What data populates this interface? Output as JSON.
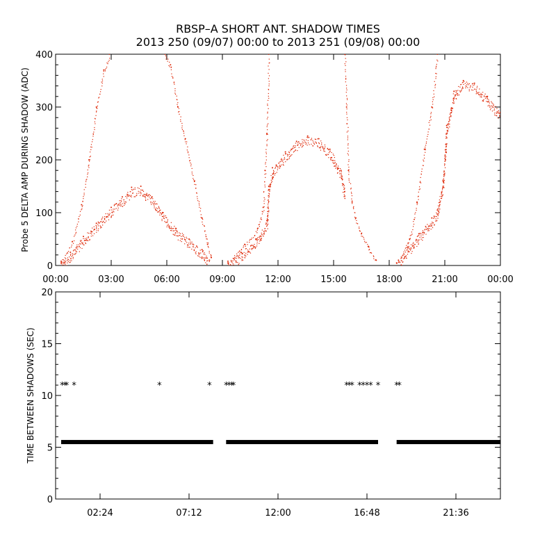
{
  "title_line1": "RBSP–A SHORT ANT. SHADOW TIMES",
  "title_line2": "2013 250 (09/07) 00:00 to 2013 251 (09/08) 00:00",
  "colors": {
    "points": "#dd2200",
    "axis": "#000000",
    "stars": "#000000"
  },
  "chart_data": [
    {
      "type": "scatter",
      "ylabel": "Probe 5 DELTA AMP DURING SHADOW (ADC)",
      "xlim": [
        0,
        24
      ],
      "ylim": [
        0,
        400
      ],
      "xticks": [
        "00:00",
        "03:00",
        "06:00",
        "09:00",
        "12:00",
        "15:00",
        "18:00",
        "21:00",
        "00:00"
      ],
      "yticks": [
        "0",
        "100",
        "200",
        "300",
        "400"
      ],
      "x_unit": "hours",
      "grid": false,
      "series": [
        {
          "values": [
            [
              0.3,
              5
            ],
            [
              0.8,
              25
            ],
            [
              1.5,
              55
            ],
            [
              2.2,
              80
            ],
            [
              3.0,
              110
            ],
            [
              3.6,
              130
            ],
            [
              4.1,
              148
            ],
            [
              4.6,
              150
            ],
            [
              5.2,
              130
            ],
            [
              5.8,
              100
            ],
            [
              6.5,
              70
            ],
            [
              7.2,
              50
            ],
            [
              7.9,
              30
            ],
            [
              8.3,
              10
            ]
          ]
        },
        {
          "values": [
            [
              0.3,
              8
            ],
            [
              0.9,
              45
            ],
            [
              1.4,
              115
            ],
            [
              1.8,
              200
            ],
            [
              2.2,
              300
            ],
            [
              2.6,
              370
            ],
            [
              2.9,
              400
            ]
          ]
        },
        {
          "values": [
            [
              5.9,
              400
            ],
            [
              6.2,
              380
            ],
            [
              6.6,
              300
            ],
            [
              7.0,
              240
            ],
            [
              7.5,
              160
            ],
            [
              7.9,
              90
            ],
            [
              8.2,
              40
            ],
            [
              8.4,
              15
            ]
          ]
        },
        {
          "values": [
            [
              9.3,
              5
            ],
            [
              10.0,
              25
            ],
            [
              10.8,
              50
            ],
            [
              11.4,
              85
            ],
            [
              11.5,
              150
            ],
            [
              11.7,
              185
            ],
            [
              12.4,
              215
            ],
            [
              13.0,
              235
            ],
            [
              13.6,
              245
            ],
            [
              14.2,
              240
            ],
            [
              14.8,
              220
            ],
            [
              15.4,
              180
            ],
            [
              15.6,
              140
            ]
          ]
        },
        {
          "values": [
            [
              9.3,
              8
            ],
            [
              10.2,
              40
            ],
            [
              10.9,
              70
            ],
            [
              11.2,
              110
            ],
            [
              11.3,
              180
            ],
            [
              11.4,
              250
            ],
            [
              11.5,
              400
            ]
          ]
        },
        {
          "values": [
            [
              15.6,
              400
            ],
            [
              15.7,
              300
            ],
            [
              15.8,
              180
            ],
            [
              16.0,
              120
            ],
            [
              16.2,
              90
            ],
            [
              16.5,
              60
            ],
            [
              16.9,
              35
            ],
            [
              17.3,
              10
            ]
          ]
        },
        {
          "values": [
            [
              18.4,
              5
            ],
            [
              19.0,
              35
            ],
            [
              19.6,
              60
            ],
            [
              20.3,
              90
            ],
            [
              20.6,
              105
            ],
            [
              20.9,
              160
            ],
            [
              21.1,
              265
            ],
            [
              21.5,
              330
            ],
            [
              22.0,
              350
            ],
            [
              22.6,
              345
            ],
            [
              23.3,
              320
            ],
            [
              24.0,
              290
            ]
          ]
        },
        {
          "values": [
            [
              18.5,
              10
            ],
            [
              19.1,
              50
            ],
            [
              19.5,
              120
            ],
            [
              19.9,
              220
            ],
            [
              20.3,
              300
            ],
            [
              20.6,
              400
            ]
          ]
        }
      ]
    },
    {
      "type": "scatter",
      "ylabel": "TIME BETWEEN SHADOWS (SEC)",
      "xlim": [
        0,
        24
      ],
      "ylim": [
        0,
        20
      ],
      "xticks": [
        "02:24",
        "07:12",
        "12:00",
        "16:48",
        "21:36"
      ],
      "yticks": [
        "0",
        "5",
        "10",
        "15",
        "20"
      ],
      "x_unit": "hours",
      "grid": false,
      "series": [
        {
          "segments": [
            [
              0.3,
              8.5
            ],
            [
              9.2,
              17.4
            ],
            [
              18.4,
              24.0
            ]
          ],
          "value": 5.5
        },
        {
          "values": [
            [
              0.35,
              11
            ],
            [
              0.5,
              11
            ],
            [
              0.6,
              11
            ],
            [
              1.0,
              11
            ],
            [
              5.6,
              11
            ],
            [
              8.3,
              11
            ],
            [
              9.2,
              11
            ],
            [
              9.35,
              11
            ],
            [
              9.5,
              11
            ],
            [
              9.6,
              11
            ],
            [
              15.7,
              11
            ],
            [
              15.85,
              11
            ],
            [
              16.0,
              11
            ],
            [
              16.4,
              11
            ],
            [
              16.6,
              11
            ],
            [
              16.8,
              11
            ],
            [
              17.0,
              11
            ],
            [
              17.4,
              11
            ],
            [
              18.4,
              11
            ],
            [
              18.55,
              11
            ]
          ]
        }
      ]
    }
  ]
}
